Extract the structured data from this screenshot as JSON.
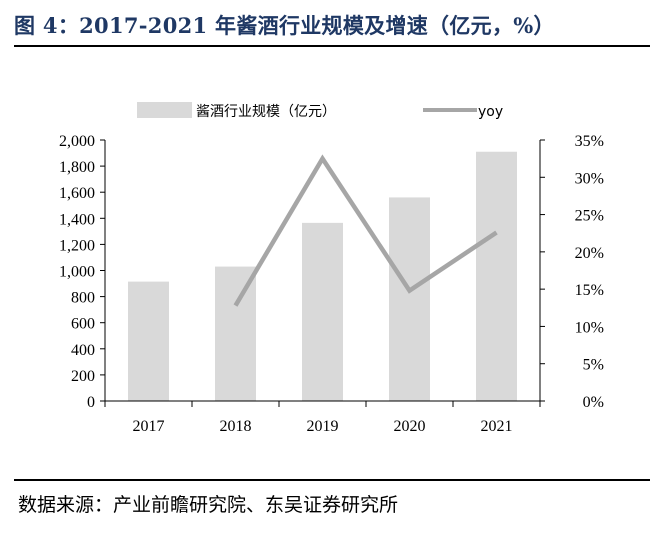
{
  "header": {
    "title": "图 4：2017-2021 年酱酒行业规模及增速（亿元，%）"
  },
  "footer": {
    "source": "数据来源：产业前瞻研究院、东吴证券研究所"
  },
  "chart_data": {
    "type": "bar",
    "categories": [
      "2017",
      "2018",
      "2019",
      "2020",
      "2021"
    ],
    "series": [
      {
        "name": "酱酒行业规模（亿元）",
        "kind": "bar",
        "axis": "left",
        "values": [
          915,
          1030,
          1365,
          1560,
          1910
        ],
        "color": "#d9d9d9"
      },
      {
        "name": "yoy",
        "kind": "line",
        "axis": "right",
        "values": [
          null,
          12.8,
          32.5,
          14.8,
          22.6
        ],
        "color": "#a6a6a6"
      }
    ],
    "y_left": {
      "min": 0,
      "max": 2000,
      "step": 200,
      "ticks": [
        "0",
        "200",
        "400",
        "600",
        "800",
        "1,000",
        "1,200",
        "1,400",
        "1,600",
        "1,800",
        "2,000"
      ]
    },
    "y_right": {
      "min": 0,
      "max": 35,
      "step": 5,
      "ticks": [
        "0%",
        "5%",
        "10%",
        "15%",
        "20%",
        "25%",
        "30%",
        "35%"
      ]
    },
    "legend_position": "top",
    "grid": false
  }
}
